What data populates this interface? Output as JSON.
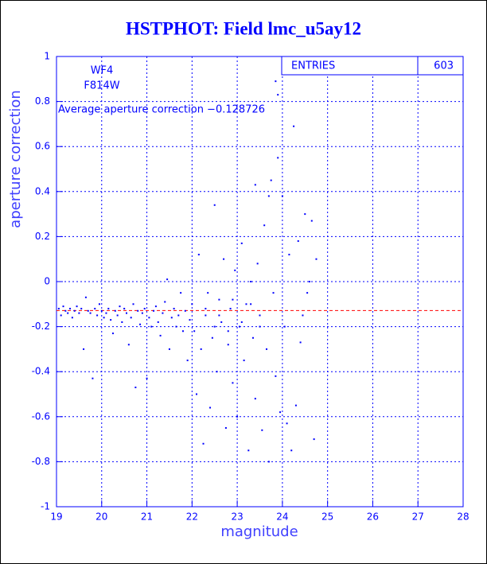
{
  "chart_data": {
    "type": "scatter",
    "title": "HSTPHOT: Field lmc_u5ay12",
    "x_label": "magnitude",
    "y_label": "aperture correction",
    "annotations": [
      "WF4",
      "F814W",
      "Average aperture correction −0.128726"
    ],
    "reference_line": {
      "value": -0.128726,
      "color": "#ff0000"
    },
    "stats": {
      "label": "ENTRIES",
      "value": 603
    },
    "color": "#0000ff",
    "grid": true,
    "xlim": [
      19,
      28
    ],
    "ylim": [
      -1,
      1
    ],
    "xticks": [
      19,
      20,
      21,
      22,
      23,
      24,
      25,
      26,
      27,
      28
    ],
    "yticks": [
      -1,
      -0.8,
      -0.6,
      -0.4,
      -0.2,
      0,
      0.2,
      0.4,
      0.6,
      0.8,
      1
    ],
    "x": [
      19.05,
      19.1,
      19.15,
      19.2,
      19.25,
      19.3,
      19.35,
      19.4,
      19.45,
      19.5,
      19.55,
      19.6,
      19.65,
      19.7,
      19.75,
      19.8,
      19.85,
      19.9,
      19.95,
      20.0,
      20.05,
      20.1,
      20.15,
      20.2,
      20.25,
      20.3,
      20.35,
      20.4,
      20.45,
      20.5,
      20.55,
      20.6,
      20.65,
      20.7,
      20.75,
      20.8,
      20.85,
      20.9,
      20.95,
      21.0,
      21.05,
      21.1,
      21.15,
      21.2,
      21.25,
      21.3,
      21.35,
      21.4,
      21.45,
      21.5,
      21.55,
      21.6,
      21.65,
      21.7,
      21.75,
      21.8,
      21.85,
      21.9,
      21.95,
      22.0,
      22.05,
      22.1,
      22.15,
      22.2,
      22.25,
      22.3,
      22.35,
      22.4,
      22.45,
      22.5,
      22.55,
      22.6,
      22.65,
      22.7,
      22.75,
      22.8,
      22.85,
      22.9,
      22.95,
      23.0,
      23.05,
      23.1,
      23.15,
      23.2,
      23.25,
      23.3,
      23.35,
      23.4,
      23.45,
      23.5,
      23.55,
      23.6,
      23.65,
      23.7,
      23.75,
      23.8,
      23.85,
      23.9,
      23.95,
      24.0,
      24.05,
      24.1,
      24.15,
      24.2,
      24.25,
      24.3,
      24.35,
      24.4,
      24.45,
      24.5,
      24.55,
      24.6,
      24.65,
      24.7,
      24.75,
      23.85,
      23.9,
      23.4,
      23.7,
      22.3,
      22.5,
      22.8,
      23.1,
      23.5,
      23.3,
      22.9,
      22.6
    ],
    "values": [
      -0.12,
      -0.15,
      -0.11,
      -0.13,
      -0.14,
      -0.12,
      -0.16,
      -0.13,
      -0.11,
      -0.14,
      -0.12,
      -0.3,
      -0.07,
      -0.13,
      -0.14,
      -0.43,
      -0.12,
      -0.15,
      -0.1,
      -0.13,
      -0.16,
      -0.14,
      -0.12,
      -0.17,
      -0.23,
      -0.13,
      -0.15,
      -0.11,
      -0.18,
      -0.12,
      -0.14,
      -0.28,
      -0.16,
      -0.1,
      -0.47,
      -0.13,
      -0.19,
      -0.14,
      -0.12,
      -0.43,
      -0.16,
      -0.2,
      -0.13,
      -0.11,
      -0.18,
      -0.24,
      -0.14,
      -0.09,
      0.01,
      -0.3,
      -0.16,
      -0.12,
      -0.2,
      -0.15,
      -0.05,
      -0.22,
      -0.13,
      -0.35,
      -0.17,
      -0.1,
      -0.22,
      -0.5,
      0.12,
      -0.3,
      -0.72,
      -0.15,
      -0.05,
      -0.56,
      -0.25,
      0.34,
      -0.4,
      -0.08,
      -0.18,
      0.1,
      -0.65,
      -0.28,
      -0.12,
      -0.45,
      0.05,
      -0.6,
      -0.2,
      0.17,
      -0.35,
      -0.1,
      -0.75,
      0.0,
      -0.25,
      -0.52,
      0.08,
      -0.15,
      -0.66,
      0.25,
      -0.3,
      -0.8,
      0.45,
      -0.05,
      -0.42,
      0.55,
      -0.58,
      0.38,
      -0.2,
      -0.63,
      0.12,
      -0.75,
      0.69,
      -0.55,
      0.18,
      -0.27,
      -0.15,
      0.3,
      -0.05,
      0.0,
      0.27,
      -0.7,
      0.1,
      0.89,
      0.83,
      0.43,
      0.38,
      -0.12,
      -0.2,
      -0.22,
      -0.18,
      -0.2,
      -0.1,
      -0.08,
      -0.15
    ]
  }
}
